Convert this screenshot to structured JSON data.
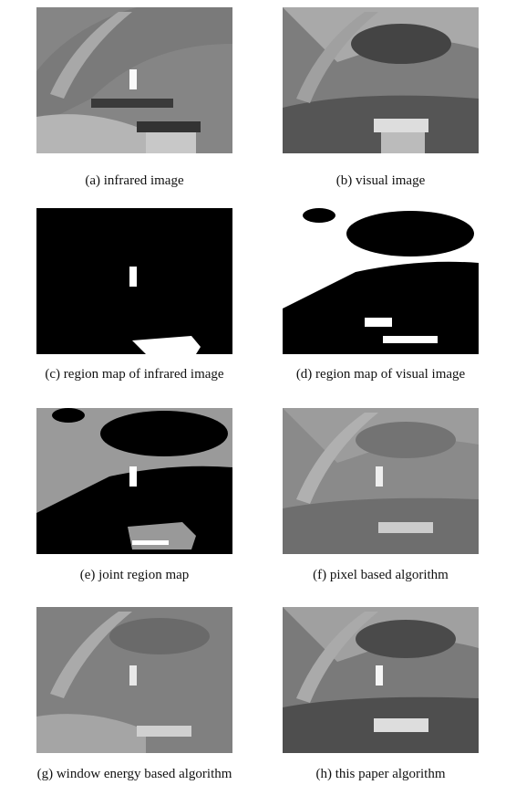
{
  "figure": {
    "panels": [
      {
        "caption": "(a) infrared image"
      },
      {
        "caption": "(b) visual image"
      },
      {
        "caption": "(c) region map of infrared image"
      },
      {
        "caption": "(d) region map of visual image"
      },
      {
        "caption": "(e) joint region map"
      },
      {
        "caption": "(f) pixel based algorithm"
      },
      {
        "caption": "(g) window energy based algorithm"
      },
      {
        "caption": "(h) this paper algorithm"
      }
    ]
  }
}
